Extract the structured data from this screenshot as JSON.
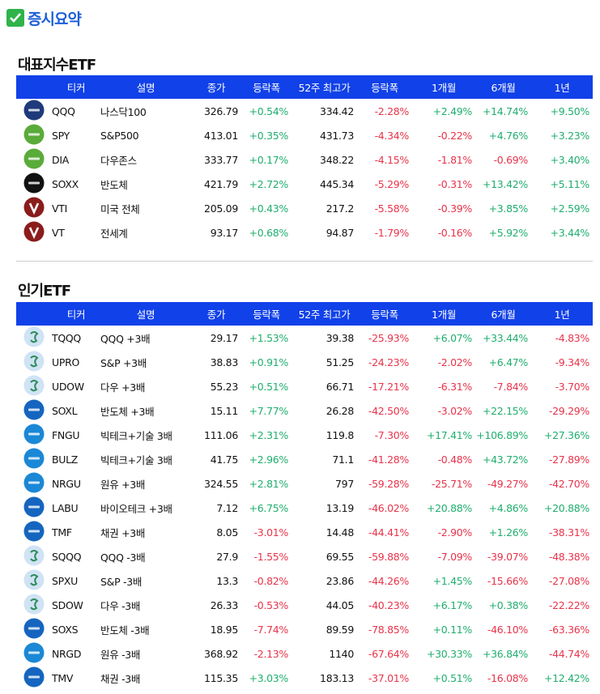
{
  "header": {
    "title": "증시요약"
  },
  "sections": [
    {
      "title": "대표지수ETF",
      "table": {
        "columns": [
          "티커",
          "설명",
          "종가",
          "등락폭",
          "52주 최고가",
          "등락폭",
          "1개월",
          "6개월",
          "1년"
        ],
        "rows": [
          {
            "icon": "#1e3a7a",
            "cells": [
              "QQQ",
              "나스닥100",
              "326.79",
              "+0.54%",
              "334.42",
              "-2.28%",
              "+2.49%",
              "+14.74%",
              "+9.50%"
            ]
          },
          {
            "icon": "#5aab3a",
            "cells": [
              "SPY",
              "S&P500",
              "413.01",
              "+0.35%",
              "431.73",
              "-4.34%",
              "-0.22%",
              "+4.76%",
              "+3.23%"
            ]
          },
          {
            "icon": "#5aab3a",
            "cells": [
              "DIA",
              "다우존스",
              "333.77",
              "+0.17%",
              "348.22",
              "-4.15%",
              "-1.81%",
              "-0.69%",
              "+3.40%"
            ]
          },
          {
            "icon": "#111111",
            "cells": [
              "SOXX",
              "반도체",
              "421.79",
              "+2.72%",
              "445.34",
              "-5.29%",
              "-0.31%",
              "+13.42%",
              "+5.11%"
            ]
          },
          {
            "icon": "#8b1c1c",
            "cells": [
              "VTI",
              "미국 전체",
              "205.09",
              "+0.43%",
              "217.2",
              "-5.58%",
              "-0.39%",
              "+3.85%",
              "+2.59%"
            ]
          },
          {
            "icon": "#8b1c1c",
            "cells": [
              "VT",
              "전세계",
              "93.17",
              "+0.68%",
              "94.87",
              "-1.79%",
              "-0.16%",
              "+5.92%",
              "+3.44%"
            ]
          }
        ]
      }
    },
    {
      "title": "인기ETF",
      "table": {
        "columns": [
          "티커",
          "설명",
          "종가",
          "등락폭",
          "52주 최고가",
          "등락폭",
          "1개월",
          "6개월",
          "1년"
        ],
        "rows": [
          {
            "icon": "#cfe3f5",
            "cells": [
              "TQQQ",
              "QQQ +3배",
              "29.17",
              "+1.53%",
              "39.38",
              "-25.93%",
              "+6.07%",
              "+33.44%",
              "-4.83%"
            ]
          },
          {
            "icon": "#cfe3f5",
            "cells": [
              "UPRO",
              "S&P +3배",
              "38.83",
              "+0.91%",
              "51.25",
              "-24.23%",
              "-2.02%",
              "+6.47%",
              "-9.34%"
            ]
          },
          {
            "icon": "#cfe3f5",
            "cells": [
              "UDOW",
              "다우 +3배",
              "55.23",
              "+0.51%",
              "66.71",
              "-17.21%",
              "-6.31%",
              "-7.84%",
              "-3.70%"
            ]
          },
          {
            "icon": "#1565c0",
            "cells": [
              "SOXL",
              "반도체 +3배",
              "15.11",
              "+7.77%",
              "26.28",
              "-42.50%",
              "-3.02%",
              "+22.15%",
              "-29.29%"
            ]
          },
          {
            "icon": "#1a88d6",
            "cells": [
              "FNGU",
              "빅테크+기술 3배",
              "111.06",
              "+2.31%",
              "119.8",
              "-7.30%",
              "+17.41%",
              "+106.89%",
              "+27.36%"
            ]
          },
          {
            "icon": "#1a88d6",
            "cells": [
              "BULZ",
              "빅테크+기술 3배",
              "41.75",
              "+2.96%",
              "71.1",
              "-41.28%",
              "-0.48%",
              "+43.72%",
              "-27.89%"
            ]
          },
          {
            "icon": "#1a88d6",
            "cells": [
              "NRGU",
              "원유 +3배",
              "324.55",
              "+2.81%",
              "797",
              "-59.28%",
              "-25.71%",
              "-49.27%",
              "-42.70%"
            ]
          },
          {
            "icon": "#1565c0",
            "cells": [
              "LABU",
              "바이오테크 +3배",
              "7.12",
              "+6.75%",
              "13.19",
              "-46.02%",
              "+20.88%",
              "+4.86%",
              "+20.88%"
            ]
          },
          {
            "icon": "#1565c0",
            "cells": [
              "TMF",
              "채권 +3배",
              "8.05",
              "-3.01%",
              "14.48",
              "-44.41%",
              "-2.90%",
              "+1.26%",
              "-38.31%"
            ]
          },
          {
            "icon": "#cfe3f5",
            "cells": [
              "SQQQ",
              "QQQ -3배",
              "27.9",
              "-1.55%",
              "69.55",
              "-59.88%",
              "-7.09%",
              "-39.07%",
              "-48.38%"
            ]
          },
          {
            "icon": "#cfe3f5",
            "cells": [
              "SPXU",
              "S&P -3배",
              "13.3",
              "-0.82%",
              "23.86",
              "-44.26%",
              "+1.45%",
              "-15.66%",
              "-27.08%"
            ]
          },
          {
            "icon": "#cfe3f5",
            "cells": [
              "SDOW",
              "다우 -3배",
              "26.33",
              "-0.53%",
              "44.05",
              "-40.23%",
              "+6.17%",
              "+0.38%",
              "-22.22%"
            ]
          },
          {
            "icon": "#1565c0",
            "cells": [
              "SOXS",
              "반도체 -3배",
              "18.95",
              "-7.74%",
              "89.59",
              "-78.85%",
              "+0.11%",
              "-46.10%",
              "-63.36%"
            ]
          },
          {
            "icon": "#1a88d6",
            "cells": [
              "NRGD",
              "원유 -3배",
              "368.92",
              "-2.13%",
              "1140",
              "-67.64%",
              "+30.33%",
              "+36.84%",
              "-44.74%"
            ]
          },
          {
            "icon": "#1565c0",
            "cells": [
              "TMV",
              "채권 -3배",
              "115.35",
              "+3.03%",
              "183.13",
              "-37.01%",
              "+0.51%",
              "-16.08%",
              "+12.42%"
            ]
          }
        ]
      }
    }
  ]
}
